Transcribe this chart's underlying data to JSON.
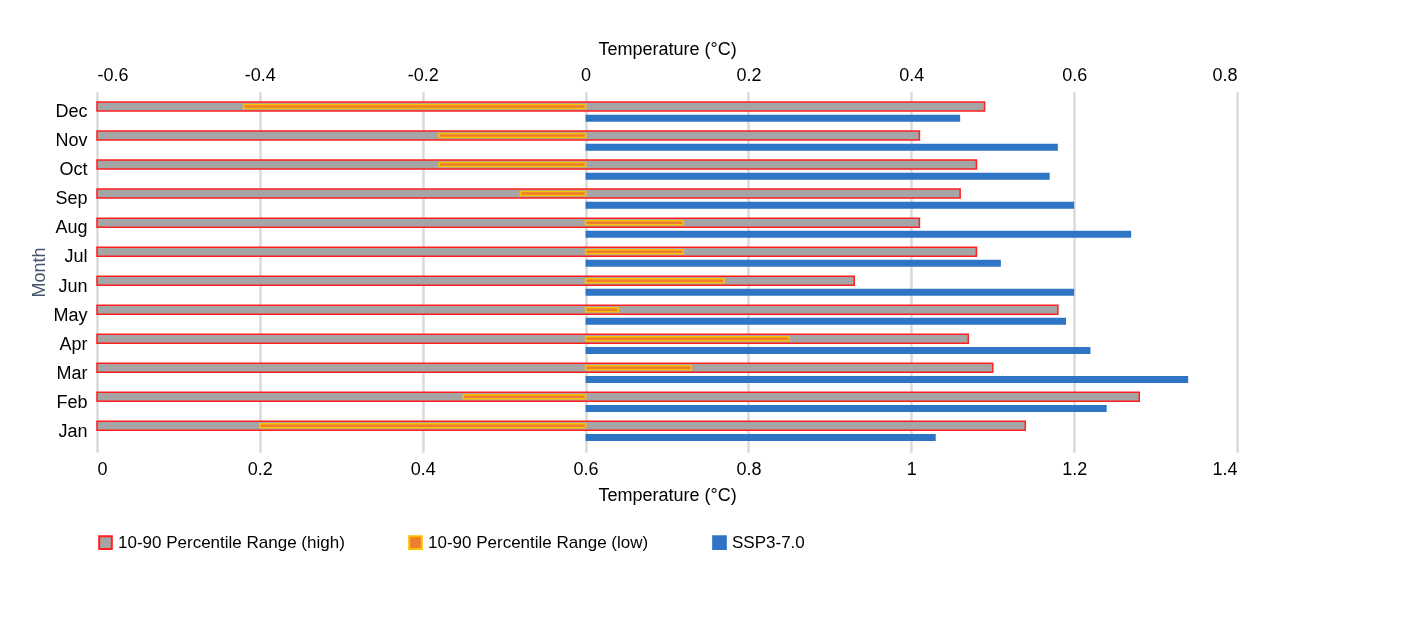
{
  "chart_data": {
    "type": "bar",
    "orientation": "horizontal",
    "xlabel": "Temperature (°C)",
    "x2label": "Temperature (°C)",
    "ylabel": "Month",
    "categories": [
      "Dec",
      "Nov",
      "Oct",
      "Sep",
      "Aug",
      "Jul",
      "Jun",
      "May",
      "Apr",
      "Mar",
      "Feb",
      "Jan"
    ],
    "xlim": [
      0,
      1.4
    ],
    "xticks": [
      0,
      0.2,
      0.4,
      0.6,
      0.8,
      1,
      1.2,
      1.4
    ],
    "x2lim": [
      -0.6,
      0.8
    ],
    "x2ticks": [
      -0.6,
      -0.4,
      -0.2,
      0,
      0.2,
      0.4,
      0.6,
      0.8
    ],
    "grid": "x",
    "legend": "bottom",
    "series": [
      {
        "name": "10-90 Percentile Range (high)",
        "color": "#a5a5a5",
        "values": [
          1.09,
          1.01,
          1.08,
          1.06,
          1.01,
          1.08,
          0.93,
          1.18,
          1.07,
          1.1,
          1.28,
          1.14
        ]
      },
      {
        "name": "10-90 Percentile Range (low)",
        "color": "#ed7d31",
        "axis": "x2",
        "values": [
          -0.42,
          -0.18,
          -0.18,
          -0.08,
          0.12,
          0.12,
          0.17,
          0.04,
          0.25,
          0.13,
          -0.15,
          -0.4
        ]
      },
      {
        "name": "SSP3-7.0",
        "color": "#2e75c6",
        "axis": "x2",
        "values": [
          0.46,
          0.58,
          0.57,
          0.6,
          0.67,
          0.51,
          0.6,
          0.59,
          0.62,
          0.74,
          0.64,
          0.43
        ]
      }
    ]
  }
}
